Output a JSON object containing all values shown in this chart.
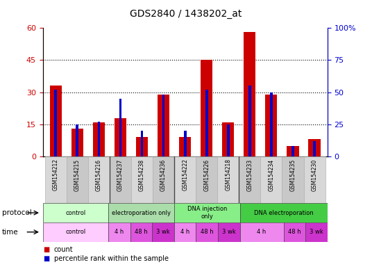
{
  "title": "GDS2840 / 1438202_at",
  "samples": [
    "GSM154212",
    "GSM154215",
    "GSM154216",
    "GSM154237",
    "GSM154238",
    "GSM154236",
    "GSM154222",
    "GSM154226",
    "GSM154218",
    "GSM154233",
    "GSM154234",
    "GSM154235",
    "GSM154230"
  ],
  "count_values": [
    33,
    13,
    16,
    18,
    9,
    29,
    9,
    45,
    16,
    58,
    29,
    5,
    8
  ],
  "percentile_values": [
    52,
    25,
    27,
    45,
    20,
    48,
    20,
    52,
    25,
    55,
    50,
    8,
    12
  ],
  "ylim_left": [
    0,
    60
  ],
  "ylim_right": [
    0,
    100
  ],
  "yticks_left": [
    0,
    15,
    30,
    45,
    60
  ],
  "yticks_right": [
    0,
    25,
    50,
    75,
    100
  ],
  "count_color": "#cc0000",
  "percentile_color": "#0000cc",
  "protocol_groups": [
    {
      "label": "control",
      "start": 0,
      "end": 3,
      "color": "#ccffcc"
    },
    {
      "label": "electroporation only",
      "start": 3,
      "end": 6,
      "color": "#aaddaa"
    },
    {
      "label": "DNA injection\nonly",
      "start": 6,
      "end": 9,
      "color": "#88ee88"
    },
    {
      "label": "DNA electroporation",
      "start": 9,
      "end": 13,
      "color": "#44cc44"
    }
  ],
  "time_groups": [
    {
      "label": "control",
      "start": 0,
      "end": 3,
      "color": "#ffaaff"
    },
    {
      "label": "4 h",
      "start": 3,
      "end": 4,
      "color": "#ee66ee"
    },
    {
      "label": "48 h",
      "start": 4,
      "end": 5,
      "color": "#dd44dd"
    },
    {
      "label": "3 wk",
      "start": 5,
      "end": 6,
      "color": "#cc33cc"
    },
    {
      "label": "4 h",
      "start": 6,
      "end": 7,
      "color": "#ee66ee"
    },
    {
      "label": "48 h",
      "start": 7,
      "end": 8,
      "color": "#dd44dd"
    },
    {
      "label": "3 wk",
      "start": 8,
      "end": 9,
      "color": "#cc33cc"
    },
    {
      "label": "4 h",
      "start": 9,
      "end": 11,
      "color": "#ee66ee"
    },
    {
      "label": "48 h",
      "start": 11,
      "end": 12,
      "color": "#dd44dd"
    },
    {
      "label": "3 wk",
      "start": 12,
      "end": 13,
      "color": "#cc33cc"
    }
  ],
  "legend_items": [
    {
      "label": "count",
      "color": "#cc0000"
    },
    {
      "label": "percentile rank within the sample",
      "color": "#0000cc"
    }
  ]
}
